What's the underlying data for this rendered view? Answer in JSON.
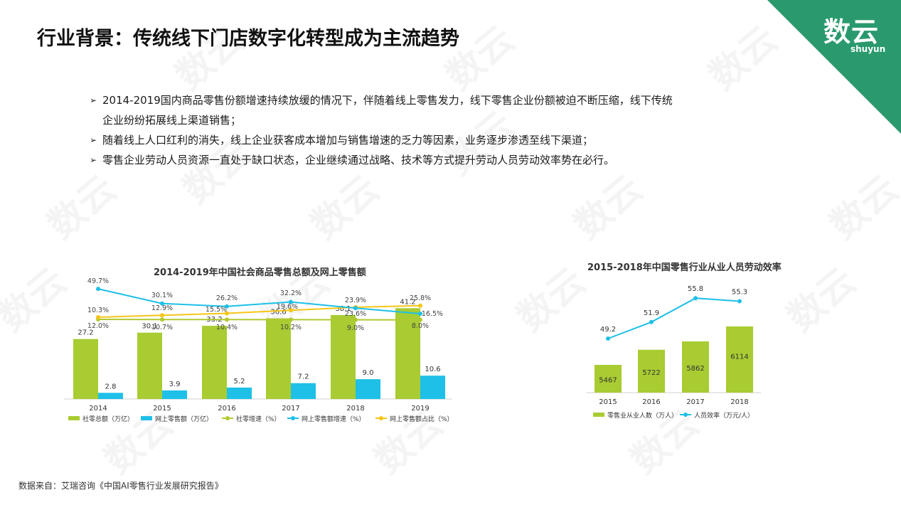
{
  "header": {
    "title": "行业背景：传统线下门店数字化转型成为主流趋势",
    "logo_main": "数云",
    "logo_sub": "shuyun",
    "watermark_text": "数云"
  },
  "bullets": [
    "2014-2019国内商品零售份额增速持续放缓的情况下，伴随着线上零售发力，线下零售企业份额被迫不断压缩，线下传统企业纷纷拓展线上渠道销售；",
    "随着线上人口红利的消失，线上企业获客成本增加与销售增速的乏力等因素，业务逐步渗透至线下渠道；",
    "零售企业劳动人员资源一直处于缺口状态，企业继续通过战略、技术等方式提升劳动人员劳动效率势在必行。"
  ],
  "bullet_mark": "➢",
  "source": "数据来自：艾瑞咨询《中国AI零售行业发展研究报告》",
  "colors": {
    "green": "#a8cc32",
    "blue": "#1ec0e8",
    "yellow": "#f5c518",
    "olive": "#b2c832",
    "teal": "#2a9a6e"
  },
  "chart_data": [
    {
      "type": "bar",
      "title": "2014-2019年中国社会商品零售总额及网上零售额",
      "categories": [
        "2014",
        "2015",
        "2016",
        "2017",
        "2018",
        "2019"
      ],
      "series": [
        {
          "name": "社零总额（万亿）",
          "type": "bar",
          "values": [
            27.2,
            30.1,
            33.2,
            36.6,
            38.1,
            41.2
          ],
          "labels": [
            "27.2",
            "30.1",
            "33.2",
            "36.6",
            "38.1",
            "41.2"
          ]
        },
        {
          "name": "网上零售额（万亿）",
          "type": "bar",
          "values": [
            2.8,
            3.9,
            5.2,
            7.2,
            9.0,
            10.6
          ],
          "labels": [
            "2.8",
            "3.9",
            "5.2",
            "7.2",
            "9.0",
            "10.6"
          ]
        },
        {
          "name": "社零增速（%）",
          "type": "line",
          "values": [
            12.0,
            10.7,
            10.4,
            10.2,
            9.0,
            8.0
          ],
          "labels": [
            "12.0%",
            "10.7%",
            "10.4%",
            "10.2%",
            "9.0%",
            "8.0%"
          ]
        },
        {
          "name": "网上零售额增速（%）",
          "type": "line",
          "values": [
            49.7,
            30.1,
            26.2,
            32.2,
            23.9,
            16.5
          ],
          "labels": [
            "49.7%",
            "30.1%",
            "26.2%",
            "32.2%",
            "23.9%",
            "16.5%"
          ]
        },
        {
          "name": "网上零售额占比（%）",
          "type": "line",
          "values": [
            10.3,
            12.9,
            15.5,
            19.6,
            23.6,
            25.8
          ],
          "labels": [
            "10.3%",
            "12.9%",
            "15.5%",
            "19.6%",
            "23.6%",
            "25.8%"
          ]
        }
      ],
      "legend_position": "bottom"
    },
    {
      "type": "bar",
      "title": "2015-2018年中国零售行业从业人员劳动效率",
      "categories": [
        "2015",
        "2016",
        "2017",
        "2018"
      ],
      "series": [
        {
          "name": "零售业从业人数（万人）",
          "type": "bar",
          "values": [
            5467,
            5722,
            5862,
            6114
          ],
          "labels": [
            "5467",
            "5722",
            "5862",
            "6114"
          ]
        },
        {
          "name": "人员效率（万元/人）",
          "type": "line",
          "values": [
            49.2,
            51.9,
            55.8,
            55.3
          ],
          "labels": [
            "49.2",
            "51.9",
            "55.8",
            "55.3"
          ]
        }
      ],
      "legend_position": "bottom"
    }
  ]
}
